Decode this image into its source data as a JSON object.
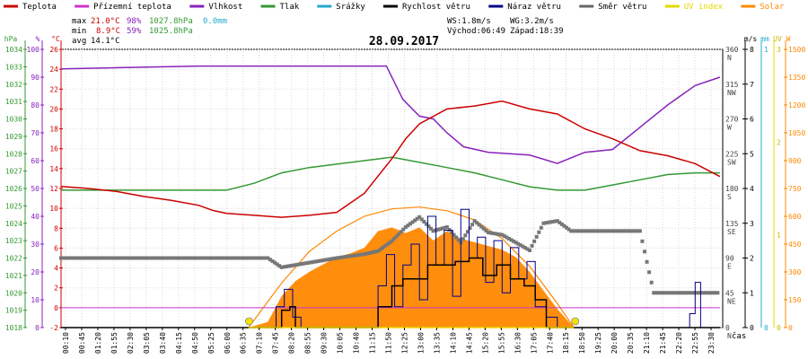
{
  "legend": [
    {
      "label": "Teplota",
      "color": "#cc0000"
    },
    {
      "label": "Přízemní teplota",
      "color": "#cc33cc"
    },
    {
      "label": "Vlhkost",
      "color": "#8822bb"
    },
    {
      "label": "Tlak",
      "color": "#339933"
    },
    {
      "label": "Srážky",
      "color": "#22aacc"
    },
    {
      "label": "Rychlost větru",
      "color": "#000000"
    },
    {
      "label": "Náraz větru",
      "color": "#000088"
    },
    {
      "label": "Směr větru",
      "color": "#666666"
    },
    {
      "label": "UV index",
      "color": "#e6d800"
    },
    {
      "label": "Solar",
      "color": "#ff8800"
    }
  ],
  "stats": {
    "max_label": "max",
    "min_label": "min",
    "avg_label": "avg",
    "max_temp": "21.0°C",
    "max_hum": "98%",
    "max_press": "1027.8hPa",
    "max_rain": "0.0mm",
    "min_temp": "8.9°C",
    "min_hum": "59%",
    "min_press": "1025.8hPa",
    "avg_temp": "14.1°C",
    "ws": "WS:1.8m/s",
    "wg": "WG:3.2m/s",
    "sunrise": "Východ:06:49",
    "sunset": "Západ:18:39"
  },
  "date": "28.09.2017",
  "x_title": "čas",
  "axes": {
    "hpa": {
      "unit": "hPa",
      "ticks": [
        "1018",
        "1019",
        "1020",
        "1021",
        "1022",
        "1023",
        "1024",
        "1025",
        "1026",
        "1027",
        "1028",
        "1029",
        "1030",
        "1031",
        "1032",
        "1033",
        "1034"
      ]
    },
    "pct": {
      "unit": "%",
      "ticks": [
        "0",
        "10",
        "20",
        "30",
        "40",
        "50",
        "60",
        "70",
        "80",
        "90",
        "100"
      ]
    },
    "temp": {
      "unit": "°C",
      "ticks": [
        "-2",
        "0",
        "2",
        "4",
        "6",
        "8",
        "10",
        "12",
        "14",
        "16",
        "18",
        "20",
        "22",
        "24",
        "26"
      ]
    },
    "dir": {
      "ticks": [
        {
          "deg": "0",
          "label": "N"
        },
        {
          "deg": "45",
          "label": "NE"
        },
        {
          "deg": "90",
          "label": "E"
        },
        {
          "deg": "135",
          "label": "SE"
        },
        {
          "deg": "180",
          "label": "S"
        },
        {
          "deg": "225",
          "label": "SW"
        },
        {
          "deg": "270",
          "label": "W"
        },
        {
          "deg": "315",
          "label": "NW"
        },
        {
          "deg": "360",
          "label": "N"
        }
      ]
    },
    "ms": {
      "unit": "m/s",
      "ticks": [
        "0",
        "1",
        "2",
        "3",
        "4",
        "5",
        "6",
        "7",
        "8"
      ]
    },
    "mm": {
      "unit": "mm",
      "ticks": [
        "0",
        "1"
      ]
    },
    "uv": {
      "unit": "UV",
      "ticks": [
        "0",
        "1",
        "2",
        "3"
      ]
    },
    "w": {
      "unit": "W",
      "ticks": [
        "0",
        "150",
        "300",
        "450",
        "600",
        "750",
        "900",
        "1050",
        "1200",
        "1350",
        "1500"
      ]
    }
  },
  "chart_data": {
    "type": "line",
    "title": "28.09.2017",
    "xlabel": "čas",
    "x_ticks": [
      "00:10",
      "00:45",
      "01:20",
      "01:55",
      "02:30",
      "03:05",
      "03:40",
      "04:15",
      "04:50",
      "05:25",
      "06:00",
      "06:35",
      "07:10",
      "07:45",
      "08:20",
      "08:55",
      "09:30",
      "10:05",
      "10:40",
      "11:15",
      "11:50",
      "12:25",
      "13:00",
      "13:35",
      "14:10",
      "14:45",
      "15:20",
      "15:55",
      "16:30",
      "17:05",
      "17:40",
      "18:15",
      "18:50",
      "19:25",
      "20:00",
      "20:35",
      "21:10",
      "21:45",
      "22:20",
      "22:55",
      "23:30"
    ],
    "series": [
      {
        "name": "Teplota",
        "axis": "°C",
        "points": [
          [
            0,
            12.2
          ],
          [
            1,
            12.0
          ],
          [
            2,
            11.7
          ],
          [
            3,
            11.2
          ],
          [
            4,
            10.8
          ],
          [
            5,
            10.3
          ],
          [
            5.5,
            9.8
          ],
          [
            6,
            9.5
          ],
          [
            7,
            9.3
          ],
          [
            8,
            9.1
          ],
          [
            9,
            9.3
          ],
          [
            10,
            9.6
          ],
          [
            11,
            11.5
          ],
          [
            12,
            15.0
          ],
          [
            12.5,
            17.0
          ],
          [
            13,
            18.5
          ],
          [
            14,
            20.0
          ],
          [
            15,
            20.3
          ],
          [
            16,
            20.8
          ],
          [
            17,
            20.0
          ],
          [
            18,
            19.5
          ],
          [
            19,
            18.0
          ],
          [
            20,
            17.0
          ],
          [
            21,
            15.8
          ],
          [
            22,
            15.3
          ],
          [
            23,
            14.5
          ],
          [
            23.9,
            13.2
          ]
        ]
      },
      {
        "name": "Vlhkost",
        "axis": "%",
        "points": [
          [
            0,
            93
          ],
          [
            5,
            94
          ],
          [
            11.8,
            94
          ],
          [
            12.4,
            82
          ],
          [
            13,
            76
          ],
          [
            13.5,
            75
          ],
          [
            14,
            70
          ],
          [
            14.6,
            65
          ],
          [
            15.5,
            63
          ],
          [
            17,
            62
          ],
          [
            18,
            59
          ],
          [
            19,
            63
          ],
          [
            20,
            64
          ],
          [
            21,
            72
          ],
          [
            22,
            80
          ],
          [
            23,
            87
          ],
          [
            23.9,
            90
          ]
        ]
      },
      {
        "name": "Tlak",
        "axis": "hPa",
        "points": [
          [
            0,
            1025.9
          ],
          [
            3,
            1025.9
          ],
          [
            4.5,
            1025.9
          ],
          [
            6,
            1025.9
          ],
          [
            7,
            1026.3
          ],
          [
            8,
            1026.9
          ],
          [
            9,
            1027.2
          ],
          [
            10,
            1027.4
          ],
          [
            11,
            1027.6
          ],
          [
            12,
            1027.8
          ],
          [
            13,
            1027.5
          ],
          [
            14,
            1027.2
          ],
          [
            15,
            1026.9
          ],
          [
            16,
            1026.5
          ],
          [
            17,
            1026.1
          ],
          [
            18,
            1025.9
          ],
          [
            19,
            1025.9
          ],
          [
            20,
            1026.2
          ],
          [
            21,
            1026.5
          ],
          [
            22,
            1026.8
          ],
          [
            23,
            1026.9
          ],
          [
            23.9,
            1026.9
          ]
        ]
      },
      {
        "name": "Srážky",
        "axis": "mm",
        "points": [
          [
            0,
            0
          ],
          [
            23.9,
            0
          ]
        ]
      },
      {
        "name": "Rychlost větru",
        "axis": "m/s",
        "points": [
          [
            0,
            0
          ],
          [
            7.5,
            0
          ],
          [
            8.0,
            0.5
          ],
          [
            8.3,
            0.6
          ],
          [
            8.5,
            0
          ],
          [
            11.3,
            0
          ],
          [
            11.5,
            0.6
          ],
          [
            12.0,
            1.2
          ],
          [
            12.4,
            1.4
          ],
          [
            12.8,
            1.4
          ],
          [
            13.3,
            1.8
          ],
          [
            13.8,
            1.8
          ],
          [
            14.3,
            1.9
          ],
          [
            14.8,
            2.0
          ],
          [
            15.3,
            1.5
          ],
          [
            15.8,
            1.8
          ],
          [
            16.3,
            1.4
          ],
          [
            16.8,
            1.2
          ],
          [
            17.2,
            0.8
          ],
          [
            17.6,
            0
          ],
          [
            23.9,
            0
          ]
        ]
      },
      {
        "name": "Náraz větru",
        "axis": "m/s",
        "points": [
          [
            0,
            0
          ],
          [
            7.5,
            0
          ],
          [
            7.8,
            0.6
          ],
          [
            8.1,
            1.1
          ],
          [
            8.4,
            0.3
          ],
          [
            8.7,
            0
          ],
          [
            11.2,
            0
          ],
          [
            11.5,
            1.2
          ],
          [
            11.8,
            2.1
          ],
          [
            12.1,
            0.6
          ],
          [
            12.4,
            1.8
          ],
          [
            12.7,
            2.4
          ],
          [
            13.0,
            0.8
          ],
          [
            13.3,
            3.2
          ],
          [
            13.6,
            1.8
          ],
          [
            13.9,
            2.8
          ],
          [
            14.2,
            0.9
          ],
          [
            14.5,
            3.4
          ],
          [
            14.8,
            2.0
          ],
          [
            15.1,
            2.6
          ],
          [
            15.4,
            1.3
          ],
          [
            15.7,
            2.5
          ],
          [
            16.0,
            1.0
          ],
          [
            16.3,
            2.3
          ],
          [
            16.6,
            1.4
          ],
          [
            16.9,
            1.9
          ],
          [
            17.2,
            0.6
          ],
          [
            17.6,
            0.3
          ],
          [
            18.0,
            0
          ],
          [
            22.6,
            0
          ],
          [
            22.8,
            0.4
          ],
          [
            23.0,
            1.3
          ],
          [
            23.2,
            0
          ],
          [
            23.9,
            0
          ]
        ]
      },
      {
        "name": "Směr větru",
        "axis": "°",
        "points": [
          [
            0,
            90
          ],
          [
            7.5,
            90
          ],
          [
            8.0,
            78
          ],
          [
            9.0,
            84
          ],
          [
            10.0,
            90
          ],
          [
            11.0,
            95
          ],
          [
            11.5,
            99
          ],
          [
            12.0,
            112
          ],
          [
            12.5,
            130
          ],
          [
            13.0,
            143
          ],
          [
            13.5,
            125
          ],
          [
            14.0,
            130
          ],
          [
            14.5,
            110
          ],
          [
            15.0,
            138
          ],
          [
            15.5,
            123
          ],
          [
            16.0,
            120
          ],
          [
            16.5,
            110
          ],
          [
            17.0,
            100
          ],
          [
            17.5,
            135
          ],
          [
            18.0,
            138
          ],
          [
            18.5,
            125
          ],
          [
            19.0,
            125
          ],
          [
            20.0,
            125
          ],
          [
            21.0,
            125
          ],
          [
            21.5,
            45
          ],
          [
            23.9,
            45
          ]
        ]
      },
      {
        "name": "Solar",
        "axis": "W",
        "points": [
          [
            6.8,
            0
          ],
          [
            7.5,
            30
          ],
          [
            8.0,
            170
          ],
          [
            8.5,
            250
          ],
          [
            9.0,
            300
          ],
          [
            9.5,
            340
          ],
          [
            10.0,
            380
          ],
          [
            10.5,
            400
          ],
          [
            11.0,
            430
          ],
          [
            11.5,
            520
          ],
          [
            12.0,
            540
          ],
          [
            12.5,
            510
          ],
          [
            13.0,
            540
          ],
          [
            13.5,
            470
          ],
          [
            14.0,
            520
          ],
          [
            14.5,
            480
          ],
          [
            15.0,
            460
          ],
          [
            15.5,
            440
          ],
          [
            16.0,
            420
          ],
          [
            16.5,
            380
          ],
          [
            17.0,
            300
          ],
          [
            17.5,
            200
          ],
          [
            18.0,
            100
          ],
          [
            18.6,
            0
          ]
        ]
      },
      {
        "name": "Přízemní teplota",
        "axis": "°C",
        "points": [
          [
            0,
            0.0
          ],
          [
            23.9,
            0.0
          ]
        ]
      },
      {
        "name": "UV index",
        "axis": "UV",
        "points": [
          [
            6.8,
            0
          ],
          [
            18.6,
            0
          ]
        ]
      }
    ],
    "clear_sky_solar": {
      "axis": "W",
      "points": [
        [
          6.8,
          0
        ],
        [
          8,
          240
        ],
        [
          9,
          410
        ],
        [
          10,
          520
        ],
        [
          11,
          600
        ],
        [
          12,
          640
        ],
        [
          13,
          650
        ],
        [
          14,
          630
        ],
        [
          15,
          580
        ],
        [
          16,
          480
        ],
        [
          17,
          330
        ],
        [
          18,
          130
        ],
        [
          18.6,
          0
        ]
      ]
    },
    "sun_markers": {
      "sunrise": 6.82,
      "sunset": 18.65
    }
  }
}
